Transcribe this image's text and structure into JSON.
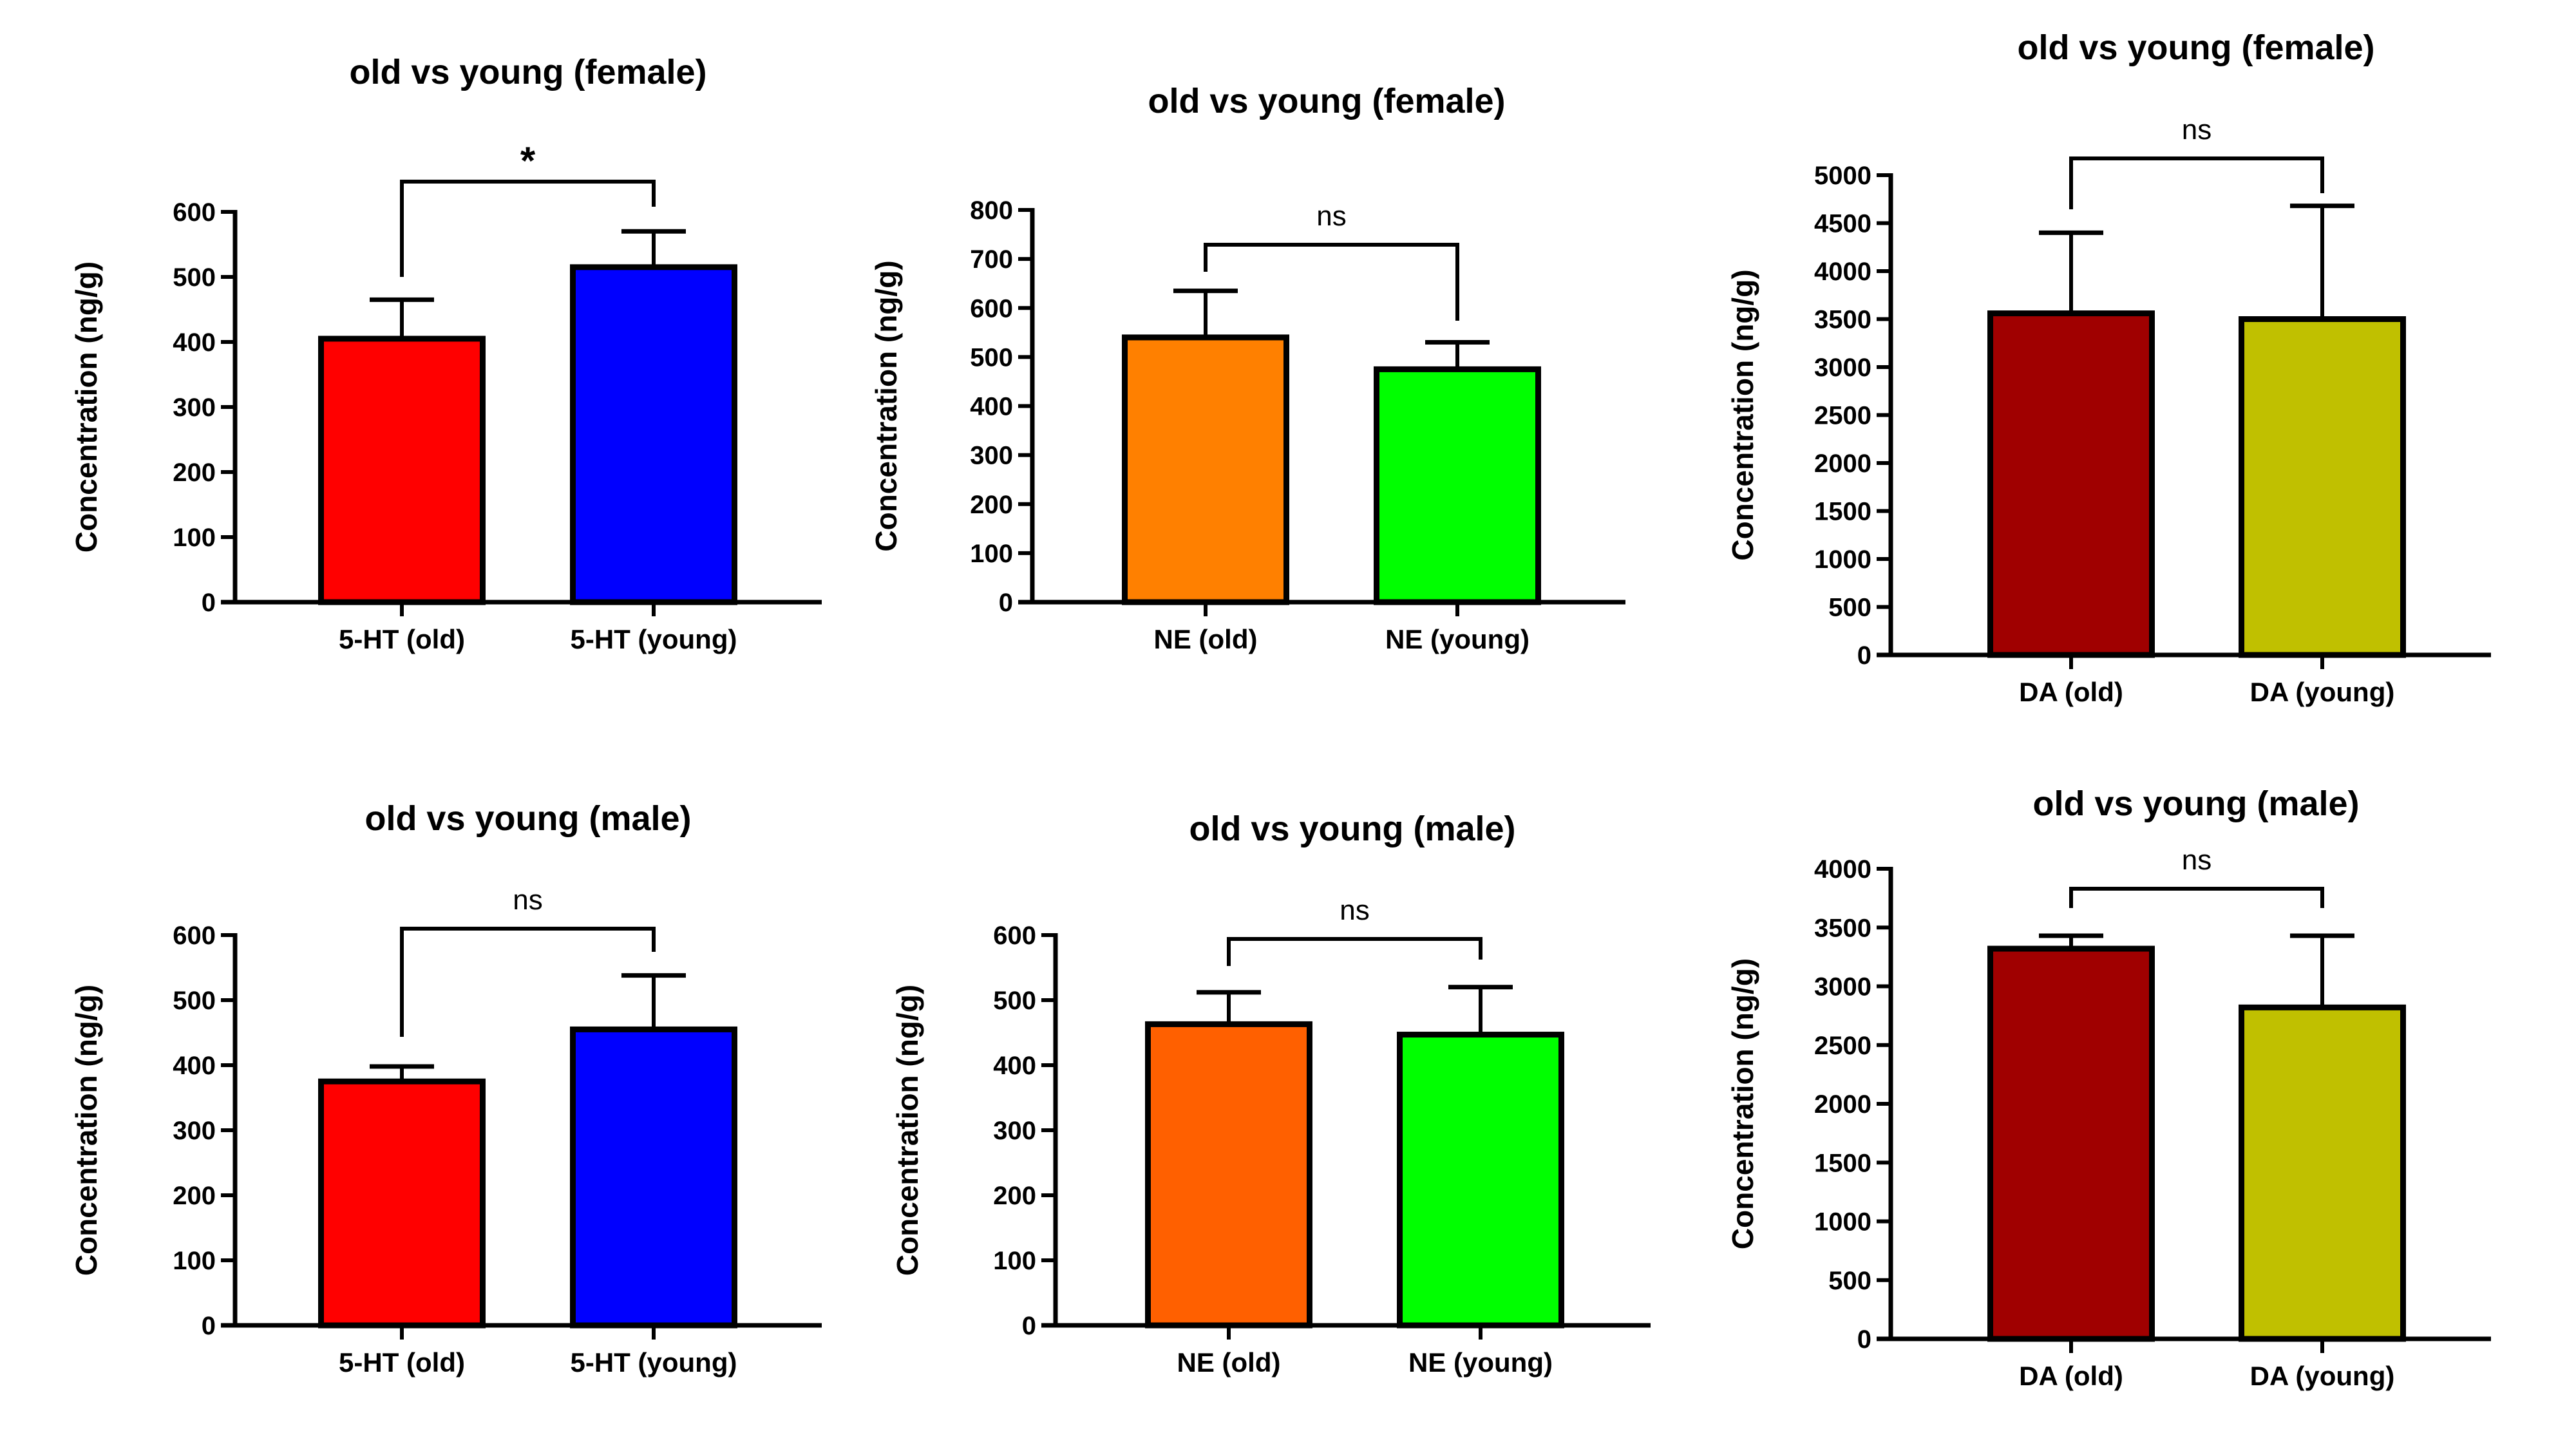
{
  "chart_data": [
    {
      "type": "bar",
      "title": "old vs young (female)",
      "ylabel": "Concentration (ng/g)",
      "categories": [
        "5-HT (old)",
        "5-HT (young)"
      ],
      "values": [
        405,
        515
      ],
      "error_upper": [
        465,
        570
      ],
      "colors": [
        "#FF0000",
        "#0000FF"
      ],
      "ylim": [
        0,
        600
      ],
      "yticks": [
        0,
        100,
        200,
        300,
        400,
        500,
        600
      ],
      "significance": "*",
      "grid": false
    },
    {
      "type": "bar",
      "title": "old vs young (female)",
      "ylabel": "Concentration (ng/g)",
      "categories": [
        "NE (old)",
        "NE (young)"
      ],
      "values": [
        540,
        475
      ],
      "error_upper": [
        635,
        530
      ],
      "colors": [
        "#FF8000",
        "#00FF00"
      ],
      "ylim": [
        0,
        800
      ],
      "yticks": [
        0,
        100,
        200,
        300,
        400,
        500,
        600,
        700,
        800
      ],
      "significance": "ns",
      "grid": false
    },
    {
      "type": "bar",
      "title": "old vs young (female)",
      "ylabel": "Concentration (ng/g)",
      "categories": [
        "DA (old)",
        "DA (young)"
      ],
      "values": [
        3560,
        3500
      ],
      "error_upper": [
        4400,
        4680
      ],
      "colors": [
        "#A00000",
        "#C0C000"
      ],
      "ylim": [
        0,
        5000
      ],
      "yticks": [
        0,
        500,
        1000,
        1500,
        2000,
        2500,
        3000,
        3500,
        4000,
        4500,
        5000
      ],
      "significance": "ns",
      "grid": false
    },
    {
      "type": "bar",
      "title": "old vs young (male)",
      "ylabel": "Concentration (ng/g)",
      "categories": [
        "5-HT (old)",
        "5-HT (young)"
      ],
      "values": [
        375,
        455
      ],
      "error_upper": [
        398,
        538
      ],
      "colors": [
        "#FF0000",
        "#0000FF"
      ],
      "ylim": [
        0,
        600
      ],
      "yticks": [
        0,
        100,
        200,
        300,
        400,
        500,
        600
      ],
      "significance": "ns",
      "grid": false
    },
    {
      "type": "bar",
      "title": "old vs young (male)",
      "ylabel": "Concentration (ng/g)",
      "categories": [
        "NE (old)",
        "NE (young)"
      ],
      "values": [
        463,
        447
      ],
      "error_upper": [
        512,
        520
      ],
      "colors": [
        "#FF6000",
        "#00FF00"
      ],
      "ylim": [
        0,
        600
      ],
      "yticks": [
        0,
        100,
        200,
        300,
        400,
        500,
        600
      ],
      "significance": "ns",
      "grid": false
    },
    {
      "type": "bar",
      "title": "old vs young (male)",
      "ylabel": "Concentration (ng/g)",
      "categories": [
        "DA (old)",
        "DA (young)"
      ],
      "values": [
        3320,
        2820
      ],
      "error_upper": [
        3430,
        3430
      ],
      "colors": [
        "#A00000",
        "#C0C000"
      ],
      "ylim": [
        0,
        4000
      ],
      "yticks": [
        0,
        500,
        1000,
        1500,
        2000,
        2500,
        3000,
        3500,
        4000
      ],
      "significance": "ns",
      "grid": false
    }
  ]
}
